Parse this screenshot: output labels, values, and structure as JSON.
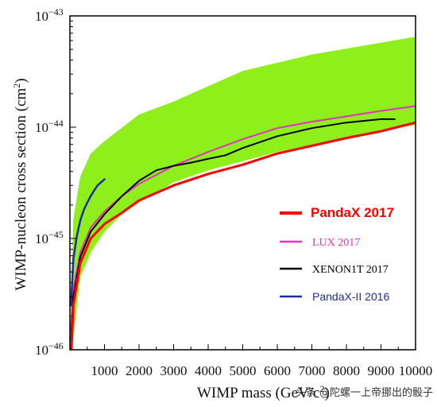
{
  "chart_data": {
    "type": "line",
    "xlabel": "WIMP mass (GeV/c²)",
    "ylabel": "WIMP-nucleon cross section (cm²)",
    "xlim": [
      0,
      10000
    ],
    "ylim": [
      1e-46,
      1e-43
    ],
    "yscale": "log",
    "grid": false,
    "legend_position": "right",
    "x_ticks": [
      "1000",
      "2000",
      "3000",
      "4000",
      "5000",
      "6000",
      "7000",
      "8000",
      "9000",
      "10000"
    ],
    "y_ticks": [
      {
        "base": "10",
        "exp": "−43",
        "value": 1e-43
      },
      {
        "base": "10",
        "exp": "−44",
        "value": 1e-44
      },
      {
        "base": "10",
        "exp": "−45",
        "value": 1e-45
      },
      {
        "base": "10",
        "exp": "−46",
        "value": 1e-46
      }
    ],
    "band": {
      "color": "#8fef1a",
      "upper": [
        [
          30,
          2.5e-46
        ],
        [
          100,
          1.5e-45
        ],
        [
          300,
          3.6e-45
        ],
        [
          600,
          5.8e-45
        ],
        [
          1000,
          7.5e-45
        ],
        [
          2000,
          1.3e-44
        ],
        [
          3000,
          1.7e-44
        ],
        [
          5000,
          3.2e-44
        ],
        [
          7000,
          4.5e-44
        ],
        [
          10000,
          6.5e-44
        ]
      ],
      "lower": [
        [
          10000,
          1.05e-44
        ],
        [
          8000,
          8e-45
        ],
        [
          6000,
          6e-45
        ],
        [
          4000,
          4.1e-45
        ],
        [
          3000,
          3.2e-45
        ],
        [
          2000,
          2.1e-45
        ],
        [
          1500,
          1.65e-45
        ],
        [
          1000,
          1.15e-45
        ],
        [
          600,
          7.5e-46
        ],
        [
          300,
          4.5e-46
        ],
        [
          100,
          1.3e-46
        ],
        [
          30,
          1e-46
        ]
      ]
    },
    "series": [
      {
        "name": "PandaX 2017",
        "color": "#ff0000",
        "width": 3,
        "points": [
          [
            30,
            8e-47
          ],
          [
            100,
            2.5e-46
          ],
          [
            300,
            6e-46
          ],
          [
            600,
            1e-45
          ],
          [
            1000,
            1.35e-45
          ],
          [
            1500,
            1.7e-45
          ],
          [
            2000,
            2.2e-45
          ],
          [
            3000,
            3e-45
          ],
          [
            4000,
            3.8e-45
          ],
          [
            5000,
            4.6e-45
          ],
          [
            6000,
            5.8e-45
          ],
          [
            7000,
            6.8e-45
          ],
          [
            8000,
            8e-45
          ],
          [
            9000,
            9.2e-45
          ],
          [
            10000,
            1.1e-44
          ]
        ]
      },
      {
        "name": "LUX 2017",
        "color": "#e030c8",
        "width": 2,
        "points": [
          [
            30,
            1.5e-46
          ],
          [
            100,
            3.5e-46
          ],
          [
            300,
            7.5e-46
          ],
          [
            600,
            1.25e-45
          ],
          [
            1000,
            1.75e-45
          ],
          [
            1500,
            2.4e-45
          ],
          [
            2000,
            3.1e-45
          ],
          [
            3000,
            4.5e-45
          ],
          [
            4000,
            6e-45
          ],
          [
            5000,
            7.8e-45
          ],
          [
            6000,
            9.8e-45
          ],
          [
            7000,
            1.12e-44
          ],
          [
            8000,
            1.25e-44
          ],
          [
            9000,
            1.4e-44
          ],
          [
            10000,
            1.55e-44
          ]
        ]
      },
      {
        "name": "XENON1T 2017",
        "color": "#000000",
        "width": 2,
        "points": [
          [
            30,
            1.2e-46
          ],
          [
            100,
            3e-46
          ],
          [
            300,
            6.8e-46
          ],
          [
            600,
            1.15e-45
          ],
          [
            1000,
            1.65e-45
          ],
          [
            1500,
            2.4e-45
          ],
          [
            2000,
            3.3e-45
          ],
          [
            2500,
            4.1e-45
          ],
          [
            3000,
            4.5e-45
          ],
          [
            3500,
            4.8e-45
          ],
          [
            4000,
            5.2e-45
          ],
          [
            4500,
            5.6e-45
          ],
          [
            5000,
            6.5e-45
          ],
          [
            6000,
            8.3e-45
          ],
          [
            7000,
            9.8e-45
          ],
          [
            8000,
            1.1e-44
          ],
          [
            9000,
            1.18e-44
          ],
          [
            9400,
            1.18e-44
          ]
        ]
      },
      {
        "name": "PandaX-II 2016",
        "color": "#1c2d9e",
        "width": 2.5,
        "points": [
          [
            30,
            2.5e-46
          ],
          [
            100,
            6.5e-46
          ],
          [
            200,
            1.05e-45
          ],
          [
            300,
            1.45e-45
          ],
          [
            400,
            1.8e-45
          ],
          [
            500,
            2.1e-45
          ],
          [
            600,
            2.4e-45
          ],
          [
            700,
            2.7e-45
          ],
          [
            800,
            3e-45
          ],
          [
            900,
            3.2e-45
          ],
          [
            1000,
            3.4e-45
          ]
        ]
      }
    ]
  },
  "watermark": "头条 @陀螺一上帝挪出的骰子"
}
